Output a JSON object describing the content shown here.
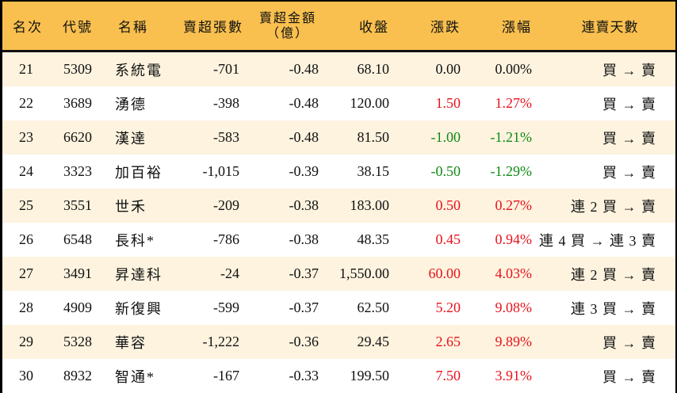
{
  "table": {
    "headers": {
      "rank": "名次",
      "code": "代號",
      "name": "名稱",
      "net_sell_lots": "賣超張數",
      "net_sell_amount": "賣超金額",
      "net_sell_amount_unit": "（億）",
      "close": "收盤",
      "change": "漲跌",
      "change_pct": "漲幅",
      "consecutive_days": "連賣天數"
    },
    "colors": {
      "header_bg": "#f9c04f",
      "row_alt_bg": "#fdf3df",
      "up": "#e8121c",
      "down": "#0f8a13"
    },
    "rows": [
      {
        "rank": "21",
        "code": "5309",
        "name": "系統電",
        "lots": "-701",
        "amount": "-0.48",
        "close": "68.10",
        "change": "0.00",
        "pct": "0.00%",
        "days": "買 → 賣",
        "trend": "flat"
      },
      {
        "rank": "22",
        "code": "3689",
        "name": "湧德",
        "lots": "-398",
        "amount": "-0.48",
        "close": "120.00",
        "change": "1.50",
        "pct": "1.27%",
        "days": "買 → 賣",
        "trend": "up"
      },
      {
        "rank": "23",
        "code": "6620",
        "name": "漢達",
        "lots": "-583",
        "amount": "-0.48",
        "close": "81.50",
        "change": "-1.00",
        "pct": "-1.21%",
        "days": "買 → 賣",
        "trend": "down"
      },
      {
        "rank": "24",
        "code": "3323",
        "name": "加百裕",
        "lots": "-1,015",
        "amount": "-0.39",
        "close": "38.15",
        "change": "-0.50",
        "pct": "-1.29%",
        "days": "買 → 賣",
        "trend": "down"
      },
      {
        "rank": "25",
        "code": "3551",
        "name": "世禾",
        "lots": "-209",
        "amount": "-0.38",
        "close": "183.00",
        "change": "0.50",
        "pct": "0.27%",
        "days": "連 2 買 → 賣",
        "trend": "up"
      },
      {
        "rank": "26",
        "code": "6548",
        "name": "長科*",
        "lots": "-786",
        "amount": "-0.38",
        "close": "48.35",
        "change": "0.45",
        "pct": "0.94%",
        "days": "連 4 買 → 連 3 賣",
        "trend": "up"
      },
      {
        "rank": "27",
        "code": "3491",
        "name": "昇達科",
        "lots": "-24",
        "amount": "-0.37",
        "close": "1,550.00",
        "change": "60.00",
        "pct": "4.03%",
        "days": "連 2 買 → 賣",
        "trend": "up"
      },
      {
        "rank": "28",
        "code": "4909",
        "name": "新復興",
        "lots": "-599",
        "amount": "-0.37",
        "close": "62.50",
        "change": "5.20",
        "pct": "9.08%",
        "days": "連 3 買 → 賣",
        "trend": "up"
      },
      {
        "rank": "29",
        "code": "5328",
        "name": "華容",
        "lots": "-1,222",
        "amount": "-0.36",
        "close": "29.45",
        "change": "2.65",
        "pct": "9.89%",
        "days": "買 → 賣",
        "trend": "up"
      },
      {
        "rank": "30",
        "code": "8932",
        "name": "智通*",
        "lots": "-167",
        "amount": "-0.33",
        "close": "199.50",
        "change": "7.50",
        "pct": "3.91%",
        "days": "買 → 賣",
        "trend": "up"
      }
    ]
  }
}
